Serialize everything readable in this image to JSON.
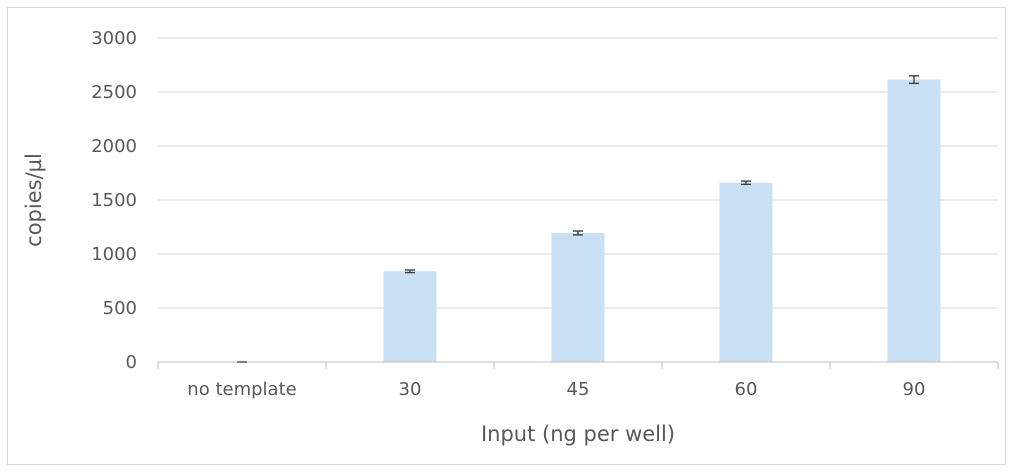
{
  "chart_data": {
    "type": "bar",
    "title": "",
    "xlabel": "Input (ng per well)",
    "ylabel": "copies/µl",
    "categories": [
      "no template",
      "30",
      "45",
      "60",
      "90"
    ],
    "values": [
      0,
      840,
      1195,
      1660,
      2615
    ],
    "errors": [
      3,
      12,
      18,
      15,
      35
    ],
    "ylim": [
      0,
      3000
    ],
    "yticks": [
      0,
      500,
      1000,
      1500,
      2000,
      2500,
      3000
    ],
    "grid": true,
    "legend": "none",
    "colors": {
      "bar": "#c9dff3",
      "grid": "#d9d9d9",
      "axis": "#bfbfbf",
      "text": "#595959",
      "error_bar": "#404040"
    }
  }
}
